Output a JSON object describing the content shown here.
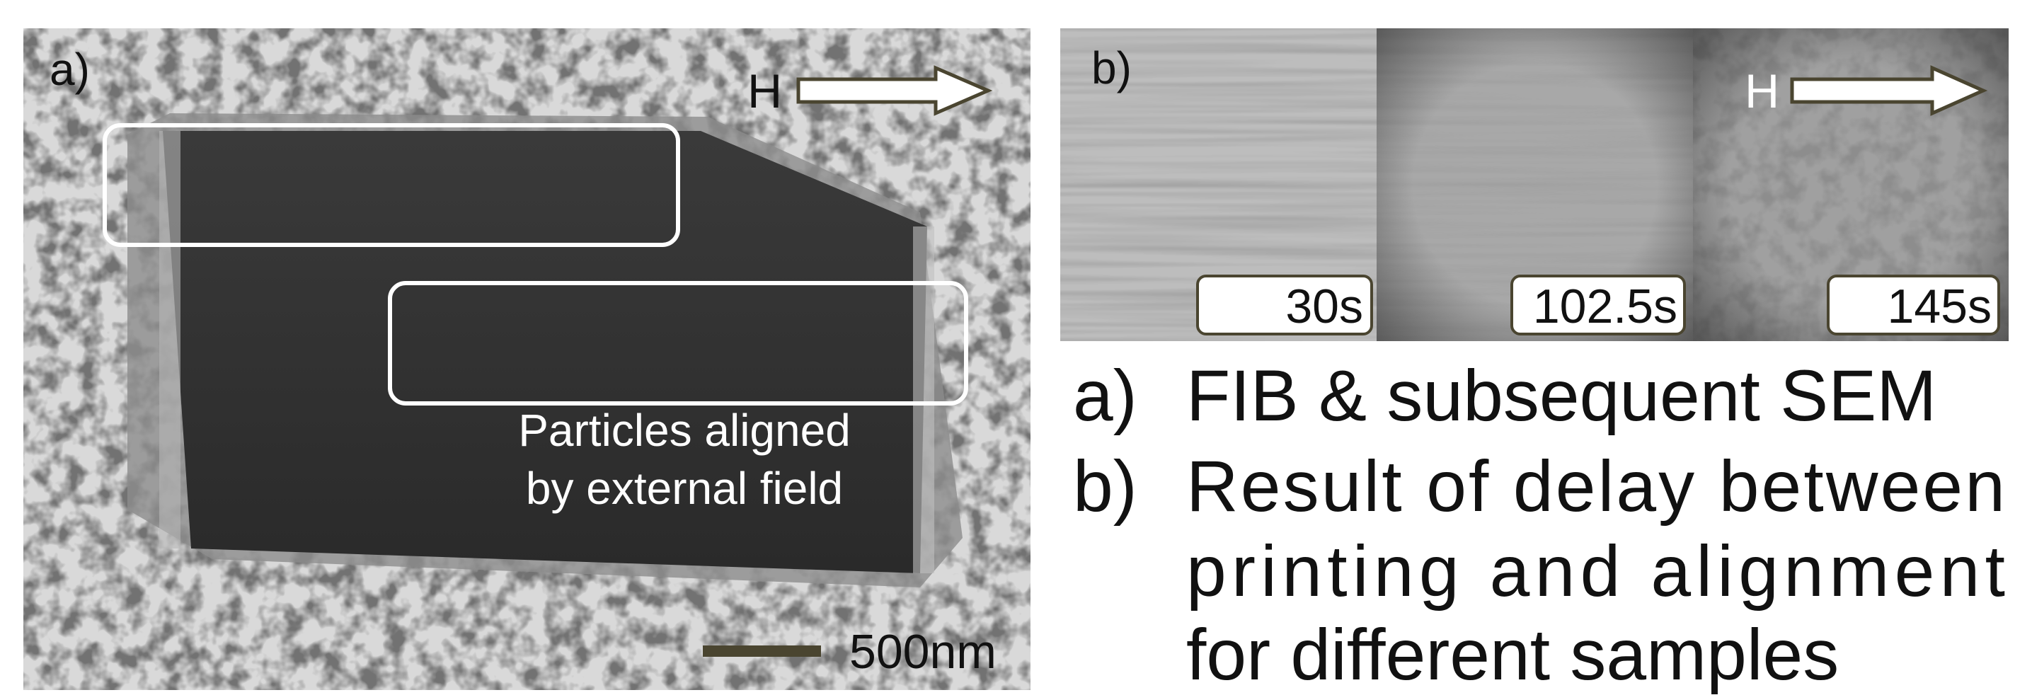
{
  "panel_a": {
    "label": "a)",
    "field": "H",
    "annotation": [
      "Particles aligned",
      "by external field"
    ],
    "scale_bar": "500nm"
  },
  "panel_b": {
    "label": "b)",
    "field": "H",
    "delays": [
      "30s",
      "102.5s",
      "145s"
    ]
  },
  "caption": [
    {
      "marker": "a)",
      "lines": [
        "FIB & subsequent SEM"
      ]
    },
    {
      "marker": "b)",
      "lines": [
        "Result of delay between",
        "printing and alignment",
        "for different samples"
      ]
    }
  ]
}
